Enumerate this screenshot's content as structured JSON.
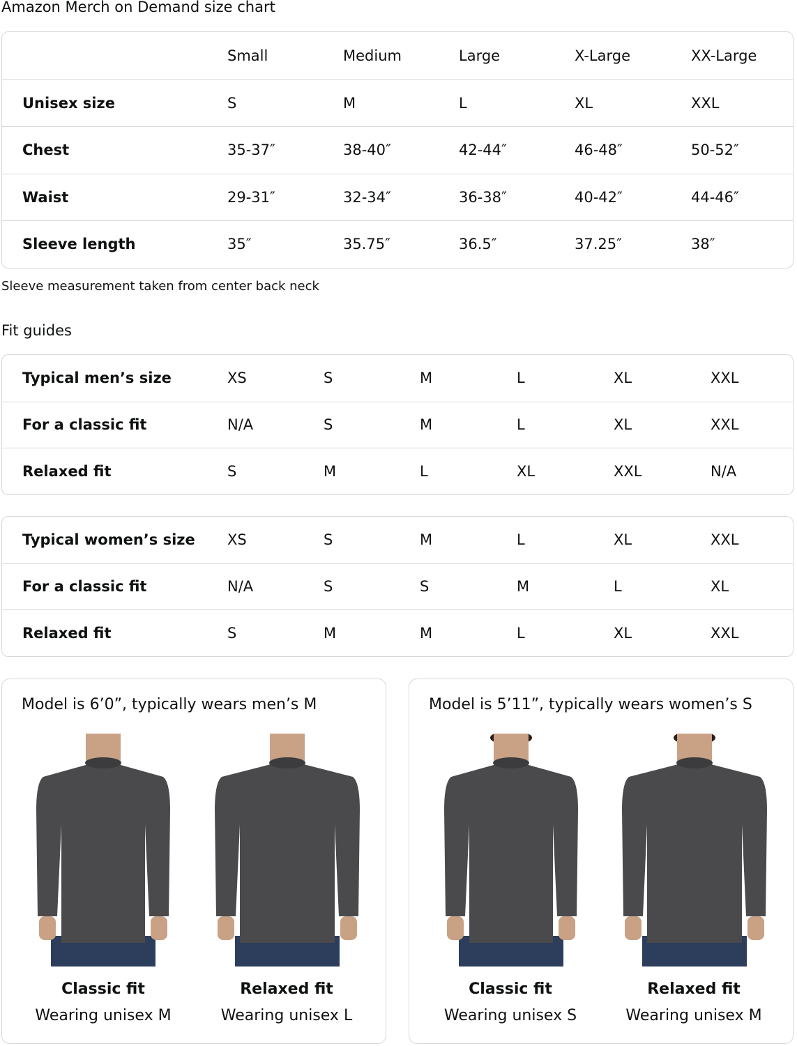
{
  "title": "Amazon Merch on Demand size chart",
  "size_chart": {
    "columns": [
      "",
      "Small",
      "Medium",
      "Large",
      "X-Large",
      "XX-Large"
    ],
    "rows": [
      {
        "label": "Unisex size",
        "values": [
          "S",
          "M",
          "L",
          "XL",
          "XXL"
        ]
      },
      {
        "label": "Chest",
        "values": [
          "35-37″",
          "38-40″",
          "42-44″",
          "46-48″",
          "50-52″"
        ]
      },
      {
        "label": "Waist",
        "values": [
          "29-31″",
          "32-34″",
          "36-38″",
          "40-42″",
          "44-46″"
        ]
      },
      {
        "label": "Sleeve length",
        "values": [
          "35″",
          "35.75″",
          "36.5″",
          "37.25″",
          "38″"
        ]
      }
    ]
  },
  "note": "Sleeve measurement taken from center back neck",
  "fit_guides_title": "Fit guides",
  "mens_guide": {
    "rows": [
      {
        "label": "Typical men’s size",
        "values": [
          "XS",
          "S",
          "M",
          "L",
          "XL",
          "XXL"
        ]
      },
      {
        "label": "For a classic fit",
        "values": [
          "N/A",
          "S",
          "M",
          "L",
          "XL",
          "XXL"
        ]
      },
      {
        "label": "Relaxed fit",
        "values": [
          "S",
          "M",
          "L",
          "XL",
          "XXL",
          "N/A"
        ]
      }
    ]
  },
  "womens_guide": {
    "rows": [
      {
        "label": "Typical women’s size",
        "values": [
          "XS",
          "S",
          "M",
          "L",
          "XL",
          "XXL"
        ]
      },
      {
        "label": "For a classic fit",
        "values": [
          "N/A",
          "S",
          "S",
          "M",
          "L",
          "XL"
        ]
      },
      {
        "label": "Relaxed fit",
        "values": [
          "S",
          "M",
          "M",
          "L",
          "XL",
          "XXL"
        ]
      }
    ]
  },
  "models": [
    {
      "caption": "Model is 6’0”, typically wears men’s M",
      "fits": [
        {
          "name": "Classic fit",
          "wearing": "Wearing unisex M"
        },
        {
          "name": "Relaxed fit",
          "wearing": "Wearing unisex L"
        }
      ]
    },
    {
      "caption": "Model is 5’11”, typically wears women’s S",
      "fits": [
        {
          "name": "Classic fit",
          "wearing": "Wearing unisex S"
        },
        {
          "name": "Relaxed fit",
          "wearing": "Wearing unisex M"
        }
      ]
    }
  ],
  "colors": {
    "border": "#d5d9d9",
    "sweatshirt": "#4a4a4c",
    "jeans": "#2c3e5c",
    "skin": "#c9a184"
  }
}
